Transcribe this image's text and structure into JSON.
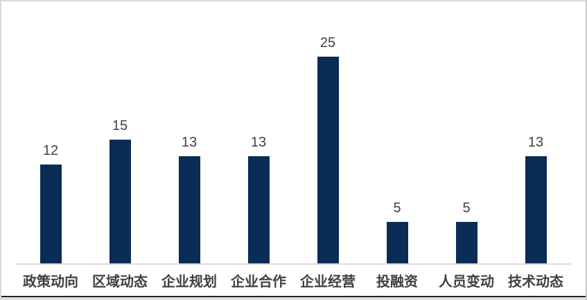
{
  "chart_data": {
    "type": "bar",
    "categories": [
      "政策动向",
      "区域动态",
      "企业规划",
      "企业合作",
      "企业经营",
      "投融资",
      "人员变动",
      "技术动态"
    ],
    "values": [
      12,
      15,
      13,
      13,
      25,
      5,
      5,
      13
    ],
    "data_labels": [
      "12",
      "15",
      "13",
      "13",
      "25",
      "5",
      "5",
      "13"
    ],
    "title": "",
    "xlabel": "",
    "ylabel": "",
    "ylim": [
      0,
      27
    ],
    "grid": false,
    "legend": "none",
    "bar_color": "#0a2d55",
    "value_label_color": "#404040",
    "category_label_color": "#404040",
    "axis_line_color": "#d9d9d9",
    "frame_border_color": "#d9d9d9",
    "background_color": "#ffffff"
  }
}
